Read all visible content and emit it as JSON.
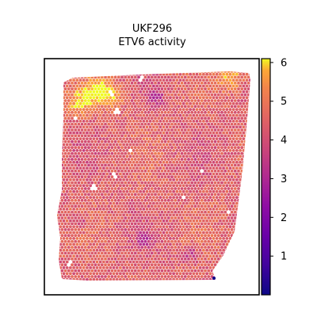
{
  "chart_data": {
    "type": "heatmap",
    "title_lines": [
      "UKF296",
      "ETV6 activity"
    ],
    "colormap": "plasma",
    "colorbar": {
      "ticks": [
        1,
        2,
        3,
        4,
        5,
        6
      ],
      "tick_labels": [
        "1",
        "2",
        "3",
        "4",
        "5",
        "6"
      ],
      "range": [
        0,
        6.1
      ]
    },
    "spot_value_summary": {
      "typical": 4.4,
      "min": 0.05,
      "max": 6.0
    },
    "frame": {
      "x_ticks": false,
      "y_ticks": false,
      "grid": false
    }
  }
}
